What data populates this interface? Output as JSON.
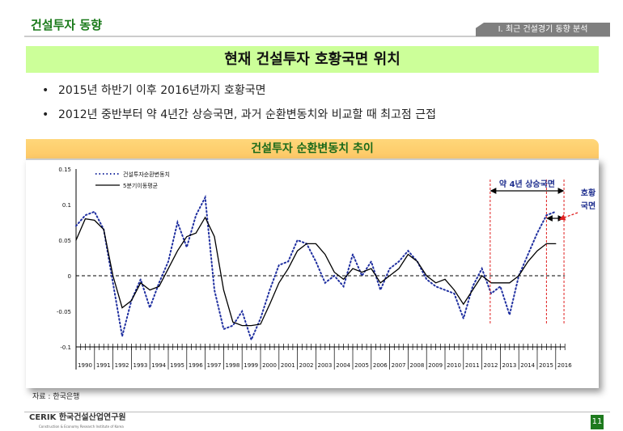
{
  "header": {
    "title": "건설투자 동향",
    "section_tab": "Ⅰ. 최근 건설경기 동향 분석"
  },
  "banner": "현재 건설투자 호황국면 위치",
  "bullets": [
    "2015년 하반기 이후 2016년까지 호황국면",
    "2012년 중반부터 약 4년간 상승국면, 과거 순환변동치와 비교할 때 최고점 근접"
  ],
  "chart_data": {
    "type": "line",
    "title": "건설투자 순환변동치 추이",
    "xlabel": "",
    "ylabel": "",
    "ylim": [
      -0.1,
      0.15
    ],
    "yticks": [
      0.15,
      0.1,
      0.05,
      0,
      -0.05,
      -0.1
    ],
    "ytick_labels": [
      "0.15",
      "0.1",
      "0.05",
      "0",
      "-0.05",
      "-0.1"
    ],
    "xtick_labels": [
      "1990",
      "1991",
      "1992",
      "1993",
      "1994",
      "1995",
      "1996",
      "1997",
      "1998",
      "1999",
      "2000",
      "2001",
      "2002",
      "2003",
      "2004",
      "2005",
      "2006",
      "2007",
      "2008",
      "2009",
      "2010",
      "2011",
      "2012",
      "2013",
      "2014",
      "2015",
      "2016"
    ],
    "x_start": 1990,
    "x_step": 0.5,
    "series": [
      {
        "name": "건설투자순환변동치",
        "style": "dotted",
        "color": "#1f2fa0",
        "values": [
          0.07,
          0.085,
          0.09,
          0.065,
          -0.01,
          -0.085,
          -0.035,
          -0.005,
          -0.045,
          -0.01,
          0.02,
          0.075,
          0.04,
          0.085,
          0.11,
          -0.02,
          -0.075,
          -0.07,
          -0.05,
          -0.09,
          -0.06,
          -0.02,
          0.015,
          0.02,
          0.05,
          0.045,
          0.02,
          -0.01,
          0.0,
          -0.015,
          0.03,
          0.0,
          0.02,
          -0.02,
          0.01,
          0.02,
          0.035,
          0.02,
          -0.005,
          -0.015,
          -0.02,
          -0.025,
          -0.06,
          -0.015,
          0.01,
          -0.025,
          -0.015,
          -0.055,
          0.0,
          0.03,
          0.06,
          0.085,
          0.09
        ]
      },
      {
        "name": "5분기이동평균",
        "style": "solid",
        "color": "#000000",
        "values": [
          0.05,
          0.08,
          0.078,
          0.065,
          0.0,
          -0.045,
          -0.035,
          -0.01,
          -0.02,
          -0.015,
          0.01,
          0.035,
          0.055,
          0.06,
          0.082,
          0.055,
          -0.02,
          -0.065,
          -0.07,
          -0.07,
          -0.068,
          -0.04,
          -0.01,
          0.01,
          0.035,
          0.045,
          0.045,
          0.03,
          0.005,
          -0.005,
          0.01,
          0.005,
          0.01,
          -0.01,
          0.0,
          0.01,
          0.03,
          0.02,
          0.0,
          -0.01,
          -0.005,
          -0.02,
          -0.04,
          -0.02,
          0.0,
          -0.01,
          -0.01,
          -0.01,
          0.0,
          0.02,
          0.035,
          0.045,
          0.045
        ]
      }
    ],
    "legend": "top-left",
    "annotations": {
      "rise_phase": "약 4년 상승국면",
      "boom_phase_line1": "호황",
      "boom_phase_line2": "국면",
      "rise_start": 2012.45,
      "boom_start": 2015.5,
      "current": 2016.45
    }
  },
  "source": "자료 : 한국은행",
  "footer": {
    "logo": "CERIK 한국건설산업연구원",
    "logo_sub": "Construction & Economy Research Institute of Korea",
    "page": "11"
  }
}
